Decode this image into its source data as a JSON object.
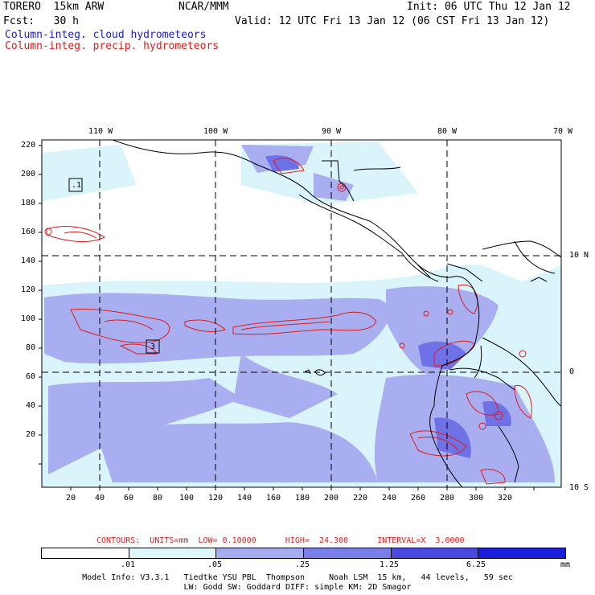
{
  "header": {
    "model": "TORERO  15km ARW",
    "org": "NCAR/MMM",
    "init": "Init: 06 UTC Thu 12 Jan 12",
    "fcst": "Fcst:   30 h",
    "valid": "Valid: 12 UTC Fri 13 Jan 12 (06 CST Fri 13 Jan 12)",
    "field1": "Column-integ. cloud hydrometeors",
    "field2": "Column-integ. precip. hydrometeors"
  },
  "map": {
    "lon_labels": [
      "110 W",
      "100 W",
      "90 W",
      "80 W",
      "70 W"
    ],
    "lat_labels": [
      "10 N",
      "0",
      "10 S"
    ],
    "x_ticks": [
      "20",
      "40",
      "60",
      "80",
      "100",
      "120",
      "140",
      "160",
      "180",
      "200",
      "220",
      "240",
      "260",
      "280",
      "300",
      "320"
    ],
    "y_ticks": [
      "220",
      "200",
      "180",
      "160",
      "140",
      "120",
      "100",
      "80",
      "60",
      "40",
      "20"
    ],
    "box_labels": [
      ".1",
      "3"
    ],
    "colors": {
      "cloud_light": "#cdf4fb",
      "cloud_mid": "#a9aef0",
      "cloud_dark": "#6f71e6",
      "precip": "#e01b1b",
      "coast": "#000000"
    }
  },
  "legend": {
    "contours": "CONTOURS:  UNITS=mm  LOW= 0.10000      HIGH=  24.300      INTERVAL=X  3.0000",
    "bins": [
      {
        "label": ".01",
        "color": "#ffffff"
      },
      {
        "label": ".05",
        "color": "#dcf6fb"
      },
      {
        "label": ".25",
        "color": "#a6acf0"
      },
      {
        "label": "1.25",
        "color": "#7a7ee8"
      },
      {
        "label": "6.25",
        "color": "#4a4ae2"
      },
      {
        "label": "",
        "color": "#1d1ddc"
      }
    ],
    "unit": "mm"
  },
  "footer": {
    "line1": "Model Info: V3.3.1   Tiedtke YSU PBL  Thompson     Noah LSM  15 km,   44 levels,   59 sec",
    "line2": "LW: Godd SW: Goddard DIFF: simple KM: 2D Smagor"
  }
}
